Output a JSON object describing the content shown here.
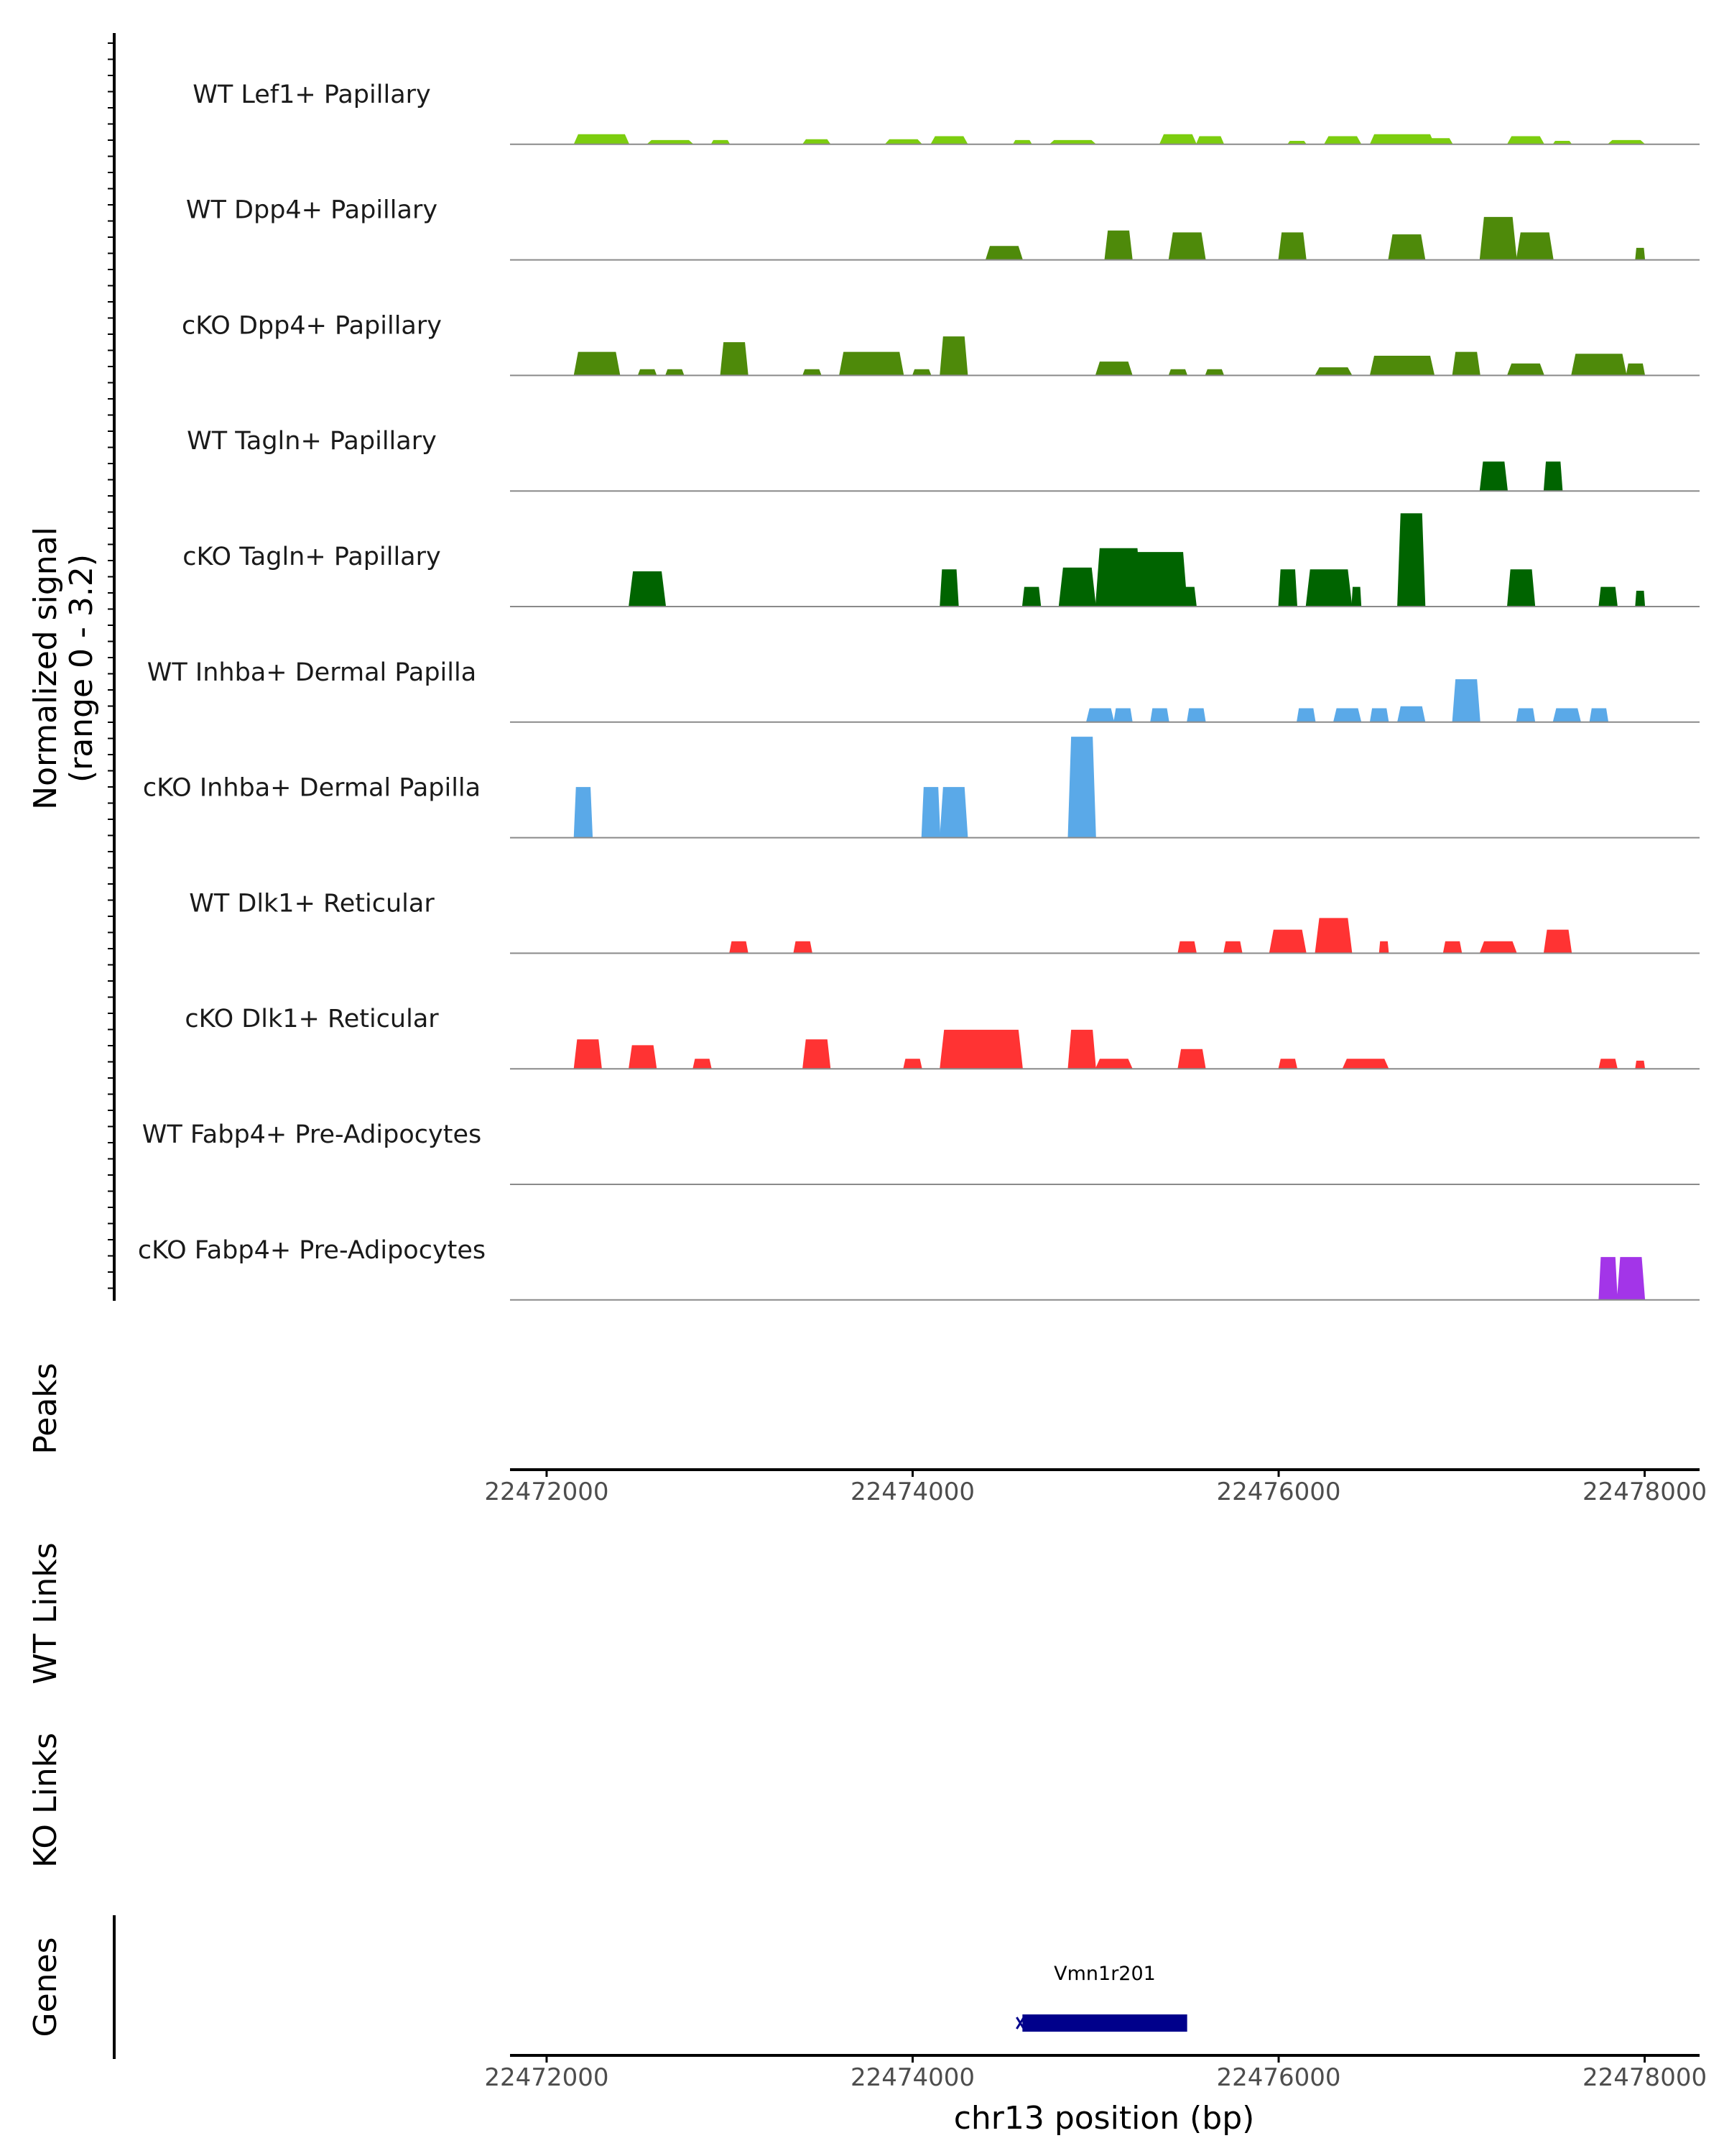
{
  "chart_data": {
    "type": "coverage",
    "chromosome": "chr13",
    "xlim": [
      22471800,
      22478300
    ],
    "x_ticks": [
      22472000,
      22474000,
      22476000,
      22478000
    ],
    "x_tick_labels": [
      "22472000",
      "22474000",
      "22476000",
      "22478000"
    ],
    "xlabel": "chr13 position (bp)",
    "ylabel_line1": "Normalized signal",
    "ylabel_line2": "(range 0 - 3.2)",
    "ylim": [
      0,
      3.2
    ],
    "tracks": [
      {
        "name": "WT Lef1+ Papillary",
        "color": "#7ccd0f",
        "peaks": [
          [
            22472150,
            22472450,
            0.25
          ],
          [
            22472550,
            22472800,
            0.1
          ],
          [
            22472900,
            22473000,
            0.1
          ],
          [
            22473400,
            22473550,
            0.12
          ],
          [
            22473850,
            22474050,
            0.12
          ],
          [
            22474100,
            22474300,
            0.2
          ],
          [
            22474550,
            22474650,
            0.1
          ],
          [
            22474750,
            22475000,
            0.1
          ],
          [
            22475350,
            22475550,
            0.25
          ],
          [
            22475550,
            22475700,
            0.2
          ],
          [
            22476050,
            22476150,
            0.08
          ],
          [
            22476250,
            22476450,
            0.2
          ],
          [
            22476500,
            22476850,
            0.25
          ],
          [
            22476800,
            22476950,
            0.15
          ],
          [
            22477250,
            22477450,
            0.2
          ],
          [
            22477500,
            22477600,
            0.08
          ],
          [
            22477800,
            22478000,
            0.1
          ]
        ]
      },
      {
        "name": "WT Dpp4+ Papillary",
        "color": "#4e8a0a",
        "peaks": [
          [
            22474400,
            22474600,
            0.35
          ],
          [
            22475050,
            22475200,
            0.75
          ],
          [
            22475400,
            22475600,
            0.7
          ],
          [
            22476000,
            22476150,
            0.7
          ],
          [
            22476600,
            22476800,
            0.65
          ],
          [
            22477100,
            22477300,
            1.1
          ],
          [
            22477300,
            22477500,
            0.7
          ],
          [
            22477950,
            22478000,
            0.3
          ]
        ]
      },
      {
        "name": "cKO Dpp4+ Papillary",
        "color": "#4e8a0a",
        "peaks": [
          [
            22472150,
            22472400,
            0.6
          ],
          [
            22472500,
            22472600,
            0.15
          ],
          [
            22472650,
            22472750,
            0.15
          ],
          [
            22472950,
            22473100,
            0.85
          ],
          [
            22473400,
            22473500,
            0.15
          ],
          [
            22473600,
            22473950,
            0.6
          ],
          [
            22474000,
            22474100,
            0.15
          ],
          [
            22474150,
            22474300,
            1.0
          ],
          [
            22475000,
            22475200,
            0.35
          ],
          [
            22475400,
            22475500,
            0.15
          ],
          [
            22475600,
            22475700,
            0.15
          ],
          [
            22476200,
            22476400,
            0.2
          ],
          [
            22476500,
            22476850,
            0.5
          ],
          [
            22476950,
            22477100,
            0.6
          ],
          [
            22477250,
            22477450,
            0.3
          ],
          [
            22477600,
            22477900,
            0.55
          ],
          [
            22477900,
            22478000,
            0.3
          ]
        ]
      },
      {
        "name": "WT Tagln+ Papillary",
        "color": "#006400",
        "peaks": [
          [
            22477100,
            22477250,
            0.75
          ],
          [
            22477450,
            22477550,
            0.75
          ]
        ]
      },
      {
        "name": "cKO Tagln+ Papillary",
        "color": "#006400",
        "peaks": [
          [
            22472450,
            22472650,
            0.9
          ],
          [
            22474150,
            22474250,
            0.95
          ],
          [
            22474600,
            22474700,
            0.5
          ],
          [
            22474800,
            22475000,
            1.0
          ],
          [
            22475000,
            22475250,
            1.5
          ],
          [
            22475200,
            22475500,
            1.4
          ],
          [
            22475450,
            22475550,
            0.5
          ],
          [
            22476000,
            22476100,
            0.95
          ],
          [
            22476150,
            22476400,
            0.95
          ],
          [
            22476400,
            22476450,
            0.5
          ],
          [
            22476650,
            22476800,
            2.4
          ],
          [
            22477250,
            22477400,
            0.95
          ],
          [
            22477750,
            22477850,
            0.5
          ],
          [
            22477950,
            22478000,
            0.4
          ]
        ]
      },
      {
        "name": "WT Inhba+ Dermal Papilla",
        "color": "#5aa9e8",
        "peaks": [
          [
            22474950,
            22475100,
            0.35
          ],
          [
            22475100,
            22475200,
            0.35
          ],
          [
            22475300,
            22475400,
            0.35
          ],
          [
            22475500,
            22475600,
            0.35
          ],
          [
            22476100,
            22476200,
            0.35
          ],
          [
            22476300,
            22476450,
            0.35
          ],
          [
            22476500,
            22476600,
            0.35
          ],
          [
            22476650,
            22476800,
            0.4
          ],
          [
            22476950,
            22477100,
            1.1
          ],
          [
            22477300,
            22477400,
            0.35
          ],
          [
            22477500,
            22477650,
            0.35
          ],
          [
            22477700,
            22477800,
            0.35
          ]
        ]
      },
      {
        "name": "cKO Inhba+ Dermal Papilla",
        "color": "#5aa9e8",
        "peaks": [
          [
            22472150,
            22472250,
            1.3
          ],
          [
            22474050,
            22474150,
            1.3
          ],
          [
            22474150,
            22474300,
            1.3
          ],
          [
            22474850,
            22475000,
            2.6
          ]
        ]
      },
      {
        "name": "WT Dlk1+ Reticular",
        "color": "#ff3333",
        "peaks": [
          [
            22473000,
            22473100,
            0.3
          ],
          [
            22473350,
            22473450,
            0.3
          ],
          [
            22475450,
            22475550,
            0.3
          ],
          [
            22475700,
            22475800,
            0.3
          ],
          [
            22475950,
            22476150,
            0.6
          ],
          [
            22476200,
            22476400,
            0.9
          ],
          [
            22476550,
            22476600,
            0.3
          ],
          [
            22476900,
            22477000,
            0.3
          ],
          [
            22477100,
            22477300,
            0.3
          ],
          [
            22477450,
            22477600,
            0.6
          ]
        ]
      },
      {
        "name": "cKO Dlk1+ Reticular",
        "color": "#ff3333",
        "peaks": [
          [
            22472150,
            22472300,
            0.75
          ],
          [
            22472450,
            22472600,
            0.6
          ],
          [
            22472800,
            22472900,
            0.25
          ],
          [
            22473400,
            22473550,
            0.75
          ],
          [
            22473950,
            22474050,
            0.25
          ],
          [
            22474150,
            22474600,
            1.0
          ],
          [
            22474850,
            22475000,
            1.0
          ],
          [
            22475000,
            22475200,
            0.25
          ],
          [
            22475450,
            22475600,
            0.5
          ],
          [
            22476000,
            22476100,
            0.25
          ],
          [
            22476350,
            22476600,
            0.25
          ],
          [
            22477750,
            22477850,
            0.25
          ],
          [
            22477950,
            22478000,
            0.2
          ]
        ]
      },
      {
        "name": "WT Fabp4+ Pre-Adipocytes",
        "color": "#a335e8",
        "peaks": []
      },
      {
        "name": "cKO Fabp4+ Pre-Adipocytes",
        "color": "#a335e8",
        "peaks": [
          [
            22477750,
            22477850,
            1.1
          ],
          [
            22477850,
            22478000,
            1.1
          ]
        ]
      }
    ],
    "peaks_track_label": "Peaks",
    "wt_links_label": "WT Links",
    "ko_links_label": "KO Links",
    "genes_label": "Genes",
    "genes": [
      {
        "name": "Vmn1r201",
        "start": 22474600,
        "end": 22475500,
        "color": "#00008b"
      }
    ]
  }
}
